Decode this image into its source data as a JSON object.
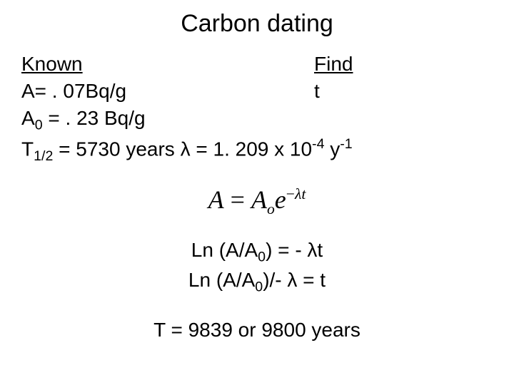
{
  "title": "Carbon dating",
  "headers": {
    "known": "Known",
    "find": "Find"
  },
  "known": {
    "line1_left": "A= . 07Bq/g",
    "line1_right": "t",
    "line2": "A",
    "line2_sub": "0",
    "line2_rest": " = . 23 Bq/g",
    "line3_a": "T",
    "line3_sub": "1/2",
    "line3_b": " = 5730 years λ = 1. 209 x 10",
    "line3_sup": "-4",
    "line3_c": "  y",
    "line3_sup2": "-1"
  },
  "formula": {
    "lhs": "A",
    "eq": " = ",
    "A": "A",
    "o_sub": "o",
    "e": "e",
    "exp_neg": "−",
    "exp_lambda": "λ",
    "exp_t": "t"
  },
  "derived": {
    "line1_a": "Ln (A/A",
    "line1_sub": "0",
    "line1_b": ") = - λt",
    "line2_a": "Ln (A/A",
    "line2_sub": "0",
    "line2_b": ")/- λ = t"
  },
  "answer": "T = 9839 or 9800 years",
  "colors": {
    "background": "#ffffff",
    "text": "#000000"
  }
}
